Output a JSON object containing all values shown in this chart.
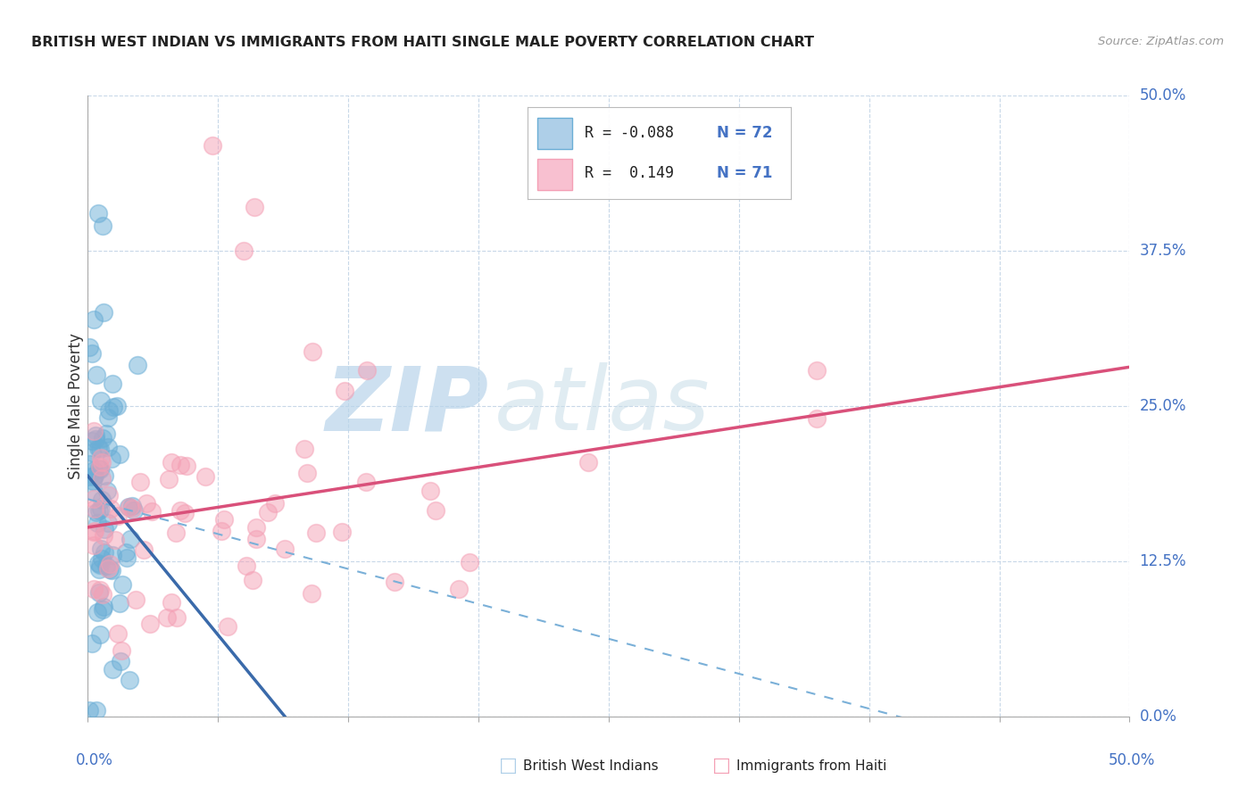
{
  "title": "BRITISH WEST INDIAN VS IMMIGRANTS FROM HAITI SINGLE MALE POVERTY CORRELATION CHART",
  "source": "Source: ZipAtlas.com",
  "ylabel": "Single Male Poverty",
  "yticks": [
    "0.0%",
    "12.5%",
    "25.0%",
    "37.5%",
    "50.0%"
  ],
  "ytick_vals": [
    0,
    12.5,
    25.0,
    37.5,
    50.0
  ],
  "xlim": [
    0,
    50
  ],
  "ylim": [
    0,
    50
  ],
  "blue_color": "#6baed6",
  "pink_color": "#f4a0b5",
  "blue_scatter_alpha": 0.5,
  "pink_scatter_alpha": 0.5,
  "watermark_zip": "ZIP",
  "watermark_atlas": "atlas",
  "bottom_legend_label1": "British West Indians",
  "bottom_legend_label2": "Immigrants from Haiti",
  "background": "#ffffff"
}
